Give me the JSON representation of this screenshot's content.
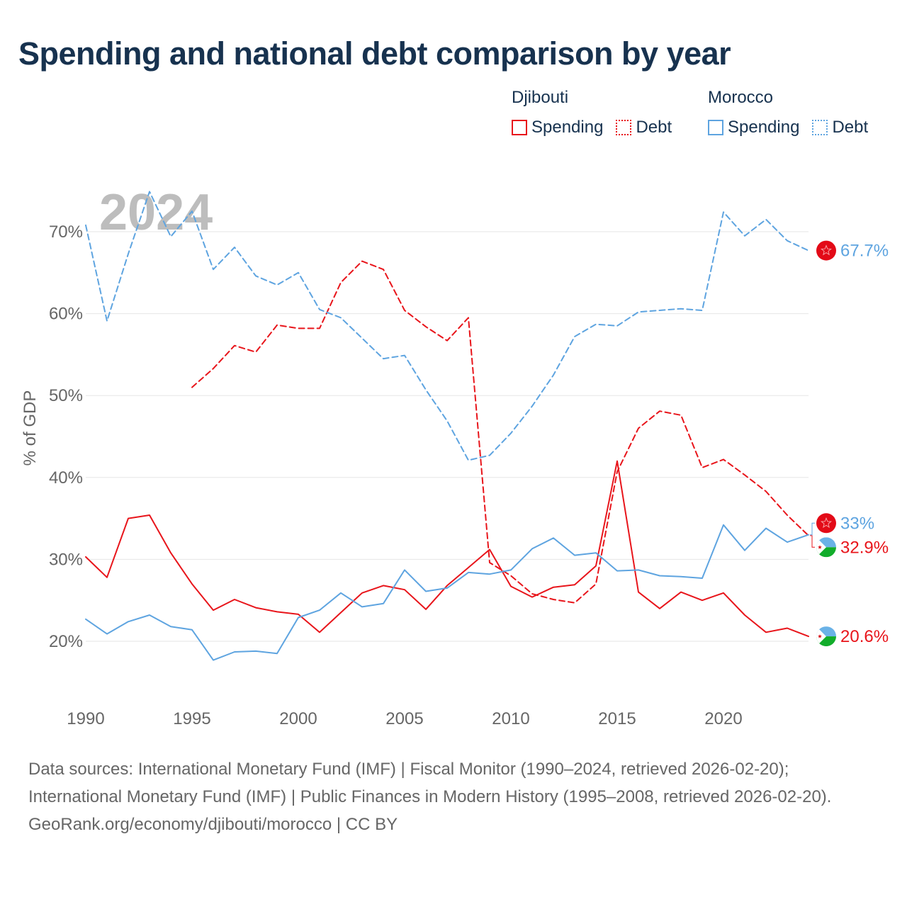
{
  "title": "Spending and national debt comparison by year",
  "legend": {
    "groups": [
      {
        "name": "Djibouti",
        "items": [
          {
            "label": "Spending"
          },
          {
            "label": "Debt"
          }
        ]
      },
      {
        "name": "Morocco",
        "items": [
          {
            "label": "Spending"
          },
          {
            "label": "Debt"
          }
        ]
      }
    ]
  },
  "footer": {
    "sources": "Data sources: International Monetary Fund (IMF) | Fiscal Monitor (1990–2024, retrieved 2026-02-20); International Monetary Fund (IMF) | Public Finances in Modern History (1995–2008, retrieved 2026-02-20).",
    "credit": "GeoRank.org/economy/djibouti/morocco | CC BY"
  },
  "colors": {
    "djibouti": "#e8151b",
    "morocco": "#5ea4e0",
    "grid": "#e6e6e6",
    "year_label": "#bdbdbd"
  },
  "chart_data": {
    "type": "line",
    "title": "Spending and national debt comparison by year",
    "year_label": "2024",
    "ylabel": "% of GDP",
    "xlabel": "",
    "xlim": [
      1990,
      2024
    ],
    "ylim": [
      13,
      75
    ],
    "x_ticks": [
      1990,
      1995,
      2000,
      2005,
      2010,
      2015,
      2020
    ],
    "y_ticks": [
      20,
      30,
      40,
      50,
      60,
      70
    ],
    "y_tick_labels": [
      "20%",
      "30%",
      "40%",
      "50%",
      "60%",
      "70%"
    ],
    "grid": true,
    "legend_position": "top-right",
    "series": [
      {
        "name": "Djibouti Spending",
        "country": "djibouti",
        "style": "solid",
        "end_label": "20.6%",
        "end_icon": "djibouti-flag-icon",
        "x": [
          1990,
          1991,
          1992,
          1993,
          1994,
          1995,
          1996,
          1997,
          1998,
          1999,
          2000,
          2001,
          2002,
          2003,
          2004,
          2005,
          2006,
          2007,
          2008,
          2009,
          2010,
          2011,
          2012,
          2013,
          2014,
          2015,
          2016,
          2017,
          2018,
          2019,
          2020,
          2021,
          2022,
          2023,
          2024
        ],
        "values": [
          30.3,
          27.8,
          35,
          35.4,
          30.8,
          27,
          23.8,
          25.1,
          24.1,
          23.6,
          23.3,
          21.1,
          23.5,
          25.9,
          26.8,
          26.3,
          23.9,
          26.8,
          29,
          31.2,
          26.7,
          25.4,
          26.6,
          26.9,
          29.2,
          42,
          26,
          24,
          26,
          25,
          25.9,
          23.2,
          21.1,
          21.6,
          20.6
        ]
      },
      {
        "name": "Djibouti Debt",
        "country": "djibouti",
        "style": "dashed",
        "end_label": "32.9%",
        "end_icon": "djibouti-flag-icon",
        "x": [
          1995,
          1996,
          1997,
          1998,
          1999,
          2000,
          2001,
          2002,
          2003,
          2004,
          2005,
          2006,
          2007,
          2008,
          2009,
          2010,
          2011,
          2012,
          2013,
          2014,
          2015,
          2016,
          2017,
          2018,
          2019,
          2020,
          2021,
          2022,
          2023,
          2024
        ],
        "values": [
          51,
          53.3,
          56.1,
          55.3,
          58.6,
          58.2,
          58.2,
          63.8,
          66.4,
          65.4,
          60.4,
          58.4,
          56.7,
          59.5,
          29.6,
          28,
          25.8,
          25.1,
          24.7,
          27,
          40.7,
          46,
          48.1,
          47.6,
          41.2,
          42.2,
          40.3,
          38.3,
          35.4,
          32.9
        ]
      },
      {
        "name": "Morocco Spending",
        "country": "morocco",
        "style": "solid",
        "end_label": "33%",
        "end_icon": "morocco-flag-icon",
        "x": [
          1990,
          1991,
          1992,
          1993,
          1994,
          1995,
          1996,
          1997,
          1998,
          1999,
          2000,
          2001,
          2002,
          2003,
          2004,
          2005,
          2006,
          2007,
          2008,
          2009,
          2010,
          2011,
          2012,
          2013,
          2014,
          2015,
          2016,
          2017,
          2018,
          2019,
          2020,
          2021,
          2022,
          2023,
          2024
        ],
        "values": [
          22.7,
          20.9,
          22.4,
          23.2,
          21.8,
          21.4,
          17.7,
          18.7,
          18.8,
          18.5,
          22.9,
          23.8,
          25.9,
          24.2,
          24.6,
          28.7,
          26.1,
          26.5,
          28.4,
          28.2,
          28.7,
          31.3,
          32.6,
          30.5,
          30.8,
          28.6,
          28.7,
          28,
          27.9,
          27.7,
          34.2,
          31.1,
          33.8,
          32.1,
          33
        ]
      },
      {
        "name": "Morocco Debt",
        "country": "morocco",
        "style": "dashed",
        "end_label": "67.7%",
        "end_icon": "morocco-flag-icon",
        "x": [
          1990,
          1991,
          1992,
          1993,
          1994,
          1995,
          1996,
          1997,
          1998,
          1999,
          2000,
          2001,
          2002,
          2003,
          2004,
          2005,
          2006,
          2007,
          2008,
          2009,
          2010,
          2011,
          2012,
          2013,
          2014,
          2015,
          2016,
          2017,
          2018,
          2019,
          2020,
          2021,
          2022,
          2023,
          2024
        ],
        "values": [
          70.8,
          59.1,
          67.3,
          74.9,
          69.4,
          72.5,
          65.4,
          68.1,
          64.6,
          63.5,
          65,
          60.5,
          59.5,
          57,
          54.5,
          54.9,
          50.7,
          46.9,
          42.1,
          42.7,
          45.4,
          48.7,
          52.5,
          57.2,
          58.7,
          58.5,
          60.2,
          60.4,
          60.6,
          60.4,
          72.4,
          69.5,
          71.5,
          68.9,
          67.7
        ]
      }
    ]
  }
}
